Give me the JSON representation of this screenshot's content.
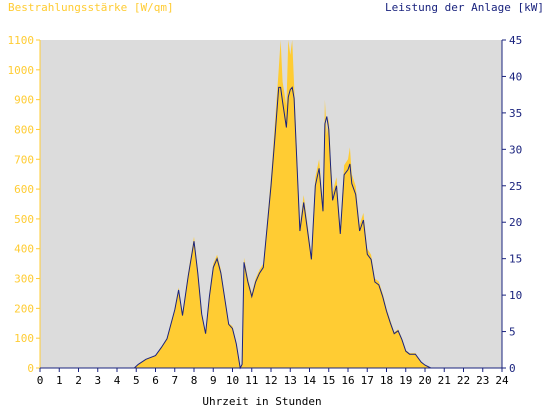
{
  "chart_data": {
    "type": "area",
    "left_axis_title": "Bestrahlungsstärke [W/qm]",
    "right_axis_title": "Leistung der Anlage [kW]",
    "xlabel": "Uhrzeit in Stunden",
    "xlim": [
      0,
      24
    ],
    "ylim_left": [
      0,
      1100
    ],
    "ylim_right": [
      0,
      45
    ],
    "x_ticks": [
      "0",
      "1",
      "2",
      "3",
      "4",
      "5",
      "6",
      "7",
      "8",
      "9",
      "10",
      "11",
      "12",
      "13",
      "14",
      "15",
      "16",
      "17",
      "18",
      "19",
      "20",
      "21",
      "22",
      "23",
      "24"
    ],
    "y_ticks_left": [
      "0",
      "100",
      "200",
      "300",
      "400",
      "500",
      "600",
      "700",
      "800",
      "900",
      "1000",
      "1100"
    ],
    "y_ticks_right": [
      "0",
      "5",
      "10",
      "15",
      "20",
      "25",
      "30",
      "35",
      "40",
      "45"
    ],
    "colors": {
      "irradiance_fill": "#ffcc33",
      "power_line": "#1a237e",
      "plot_background": "#dcdcdc",
      "left_axis": "#ffcc33",
      "right_axis": "#1a237e"
    },
    "series": [
      {
        "name": "Bestrahlungsstärke [W/qm]",
        "axis": "left",
        "style": "filled-area",
        "x": [
          0,
          4.9,
          5.1,
          5.5,
          6.0,
          6.3,
          6.6,
          7.0,
          7.2,
          7.4,
          7.7,
          7.9,
          8.0,
          8.2,
          8.4,
          8.6,
          8.8,
          9.0,
          9.2,
          9.4,
          9.6,
          9.8,
          10.0,
          10.2,
          10.4,
          10.5,
          10.6,
          10.8,
          11.0,
          11.2,
          11.4,
          11.6,
          11.8,
          12.0,
          12.2,
          12.4,
          12.5,
          12.6,
          12.8,
          12.9,
          13.0,
          13.1,
          13.2,
          13.3,
          13.5,
          13.7,
          13.9,
          14.1,
          14.3,
          14.5,
          14.7,
          14.8,
          14.9,
          15.0,
          15.1,
          15.2,
          15.4,
          15.6,
          15.8,
          16.0,
          16.1,
          16.2,
          16.4,
          16.6,
          16.8,
          17.0,
          17.2,
          17.4,
          17.6,
          17.8,
          18.0,
          18.2,
          18.4,
          18.6,
          18.8,
          19.0,
          19.2,
          19.5,
          19.8,
          20.0,
          20.3,
          24
        ],
        "values": [
          0,
          0,
          10,
          30,
          40,
          70,
          100,
          200,
          270,
          180,
          320,
          400,
          440,
          330,
          180,
          120,
          250,
          350,
          380,
          330,
          240,
          150,
          140,
          80,
          0,
          10,
          370,
          300,
          250,
          300,
          330,
          350,
          490,
          640,
          820,
          1000,
          1100,
          960,
          880,
          1100,
          1050,
          1100,
          950,
          800,
          480,
          580,
          480,
          380,
          640,
          700,
          550,
          900,
          780,
          840,
          700,
          590,
          640,
          470,
          680,
          700,
          740,
          650,
          610,
          480,
          520,
          400,
          380,
          300,
          290,
          250,
          200,
          160,
          120,
          130,
          100,
          60,
          50,
          50,
          20,
          10,
          0,
          0
        ]
      },
      {
        "name": "Leistung der Anlage [kW]",
        "axis": "right",
        "style": "line",
        "x": [
          0,
          4.9,
          5.1,
          5.5,
          6.0,
          6.3,
          6.6,
          7.0,
          7.2,
          7.4,
          7.7,
          7.9,
          8.0,
          8.2,
          8.4,
          8.6,
          8.8,
          9.0,
          9.2,
          9.4,
          9.6,
          9.8,
          10.0,
          10.2,
          10.4,
          10.5,
          10.6,
          10.8,
          11.0,
          11.2,
          11.4,
          11.6,
          11.8,
          12.0,
          12.2,
          12.4,
          12.5,
          12.6,
          12.8,
          12.9,
          13.0,
          13.1,
          13.2,
          13.3,
          13.5,
          13.7,
          13.9,
          14.1,
          14.3,
          14.5,
          14.7,
          14.8,
          14.9,
          15.0,
          15.1,
          15.2,
          15.4,
          15.6,
          15.8,
          16.0,
          16.1,
          16.2,
          16.4,
          16.6,
          16.8,
          17.0,
          17.2,
          17.4,
          17.6,
          17.8,
          18.0,
          18.2,
          18.4,
          18.6,
          18.8,
          19.0,
          19.2,
          19.5,
          19.8,
          20.0,
          20.3,
          24
        ],
        "values": [
          0,
          0,
          0.5,
          1.2,
          1.7,
          2.8,
          4.0,
          8.0,
          10.7,
          7.2,
          12.6,
          15.8,
          17.4,
          13.0,
          7.4,
          4.7,
          9.8,
          13.8,
          15.0,
          13.0,
          9.5,
          6.0,
          5.4,
          3.3,
          0,
          0.5,
          14.5,
          11.8,
          9.8,
          11.8,
          13.0,
          13.8,
          19.3,
          25.0,
          31.6,
          38.5,
          38.5,
          36.5,
          33.0,
          37.2,
          38.2,
          38.5,
          37.0,
          31.0,
          18.8,
          22.7,
          18.8,
          14.9,
          25.0,
          27.4,
          21.5,
          33.5,
          34.5,
          32.7,
          27.4,
          23.0,
          25.0,
          18.4,
          26.5,
          27.2,
          28.0,
          25.3,
          23.8,
          18.8,
          20.3,
          15.6,
          14.9,
          11.8,
          11.4,
          9.8,
          7.8,
          6.2,
          4.7,
          5.1,
          3.9,
          2.3,
          1.9,
          1.9,
          0.8,
          0.4,
          0,
          0
        ]
      }
    ]
  }
}
